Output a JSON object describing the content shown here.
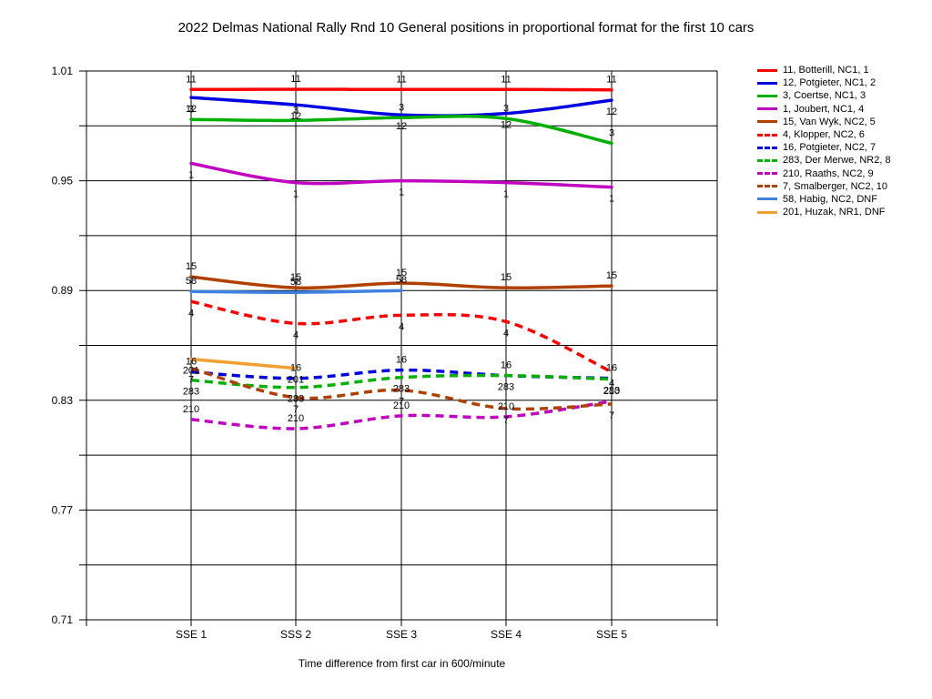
{
  "chart_data": {
    "type": "line",
    "title": "2022 Delmas National Rally Rnd 10  General positions in proportional format for the first 10 cars",
    "xlabel": "Time difference from first car in 600/minute",
    "ylabel": "",
    "categories": [
      "SSE 1",
      "SSS 2",
      "SSE 3",
      "SSE 4",
      "SSE 5"
    ],
    "ylim": [
      0.71,
      1.01
    ],
    "yticks": [
      "1.01",
      "0.95",
      "0.89",
      "0.83",
      "0.77",
      "0.71"
    ],
    "grid": "horizontal",
    "legend_position": "right",
    "series": [
      {
        "name": "11, Botterill, NC1, 1",
        "label": "11",
        "color": "#ff0000",
        "dashed": false,
        "values": [
          0.9999,
          1.0,
          0.9999,
          0.9999,
          0.9997
        ]
      },
      {
        "name": "12, Potgieter, NC1, 2",
        "label": "12",
        "color": "#0000e0",
        "dashed": false,
        "values": [
          0.9955,
          0.9915,
          0.986,
          0.9868,
          0.994
        ]
      },
      {
        "name": "3, Coertse, NC1, 3",
        "label": "3",
        "color": "#00b000",
        "dashed": false,
        "values": [
          0.9835,
          0.983,
          0.9845,
          0.984,
          0.9705
        ]
      },
      {
        "name": "1, Joubert, NC1, 4",
        "label": "1",
        "color": "#c000c0",
        "dashed": false,
        "values": [
          0.9595,
          0.949,
          0.95,
          0.949,
          0.9465
        ]
      },
      {
        "name": "15, Van Wyk, NC2, 5",
        "label": "15",
        "color": "#b04000",
        "dashed": false,
        "values": [
          0.8975,
          0.8915,
          0.894,
          0.8915,
          0.8925
        ]
      },
      {
        "name": "4, Klopper, NC2, 6",
        "label": "4",
        "color": "#ff0000",
        "dashed": true,
        "values": [
          0.884,
          0.872,
          0.8765,
          0.873,
          0.8455
        ]
      },
      {
        "name": "16, Potgieter, NC2, 7",
        "label": "16",
        "color": "#0000e0",
        "dashed": true,
        "values": [
          0.8455,
          0.842,
          0.8465,
          0.8435,
          0.842
        ]
      },
      {
        "name": "283, Der Merwe, NR2, 8",
        "label": "283",
        "color": "#00b000",
        "dashed": true,
        "values": [
          0.841,
          0.837,
          0.8425,
          0.8435,
          0.8415
        ]
      },
      {
        "name": "210, Raaths, NC2, 9",
        "label": "210",
        "color": "#c000c0",
        "dashed": true,
        "values": [
          0.8195,
          0.8145,
          0.8215,
          0.821,
          0.8295
        ]
      },
      {
        "name": "7, Smalberger, NC2, 10",
        "label": "7",
        "color": "#b04000",
        "dashed": true,
        "values": [
          0.8475,
          0.8315,
          0.8355,
          0.8255,
          0.828
        ]
      },
      {
        "name": "58, Habig, NC2, DNF",
        "label": "58",
        "color": "#4080e0",
        "dashed": false,
        "values": [
          0.8895,
          0.889,
          0.89,
          null,
          null
        ]
      },
      {
        "name": "201, Huzak, NR1, DNF",
        "label": "201",
        "color": "#f0a030",
        "dashed": false,
        "values": [
          0.8525,
          0.8475,
          null,
          null,
          null
        ]
      }
    ]
  }
}
